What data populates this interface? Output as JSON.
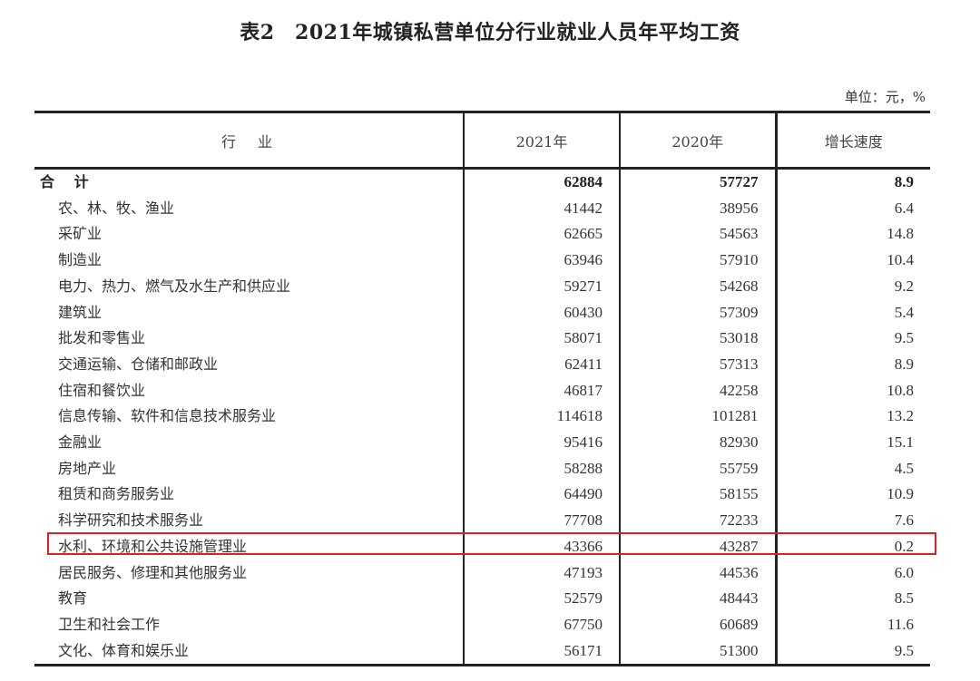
{
  "title": "表2　2021年城镇私营单位分行业就业人员年平均工资",
  "unit": "单位：元，%",
  "headers": [
    "行　业",
    "2021年",
    "2020年",
    "增长速度"
  ],
  "highlight_color": "#e02020",
  "highlighted_row": "水利、环境和公共设施管理业",
  "rows": [
    {
      "name": "合 计",
      "y2021": "62884",
      "y2020": "57727",
      "growth": "8.9",
      "total": true
    },
    {
      "name": "农、林、牧、渔业",
      "y2021": "41442",
      "y2020": "38956",
      "growth": "6.4"
    },
    {
      "name": "采矿业",
      "y2021": "62665",
      "y2020": "54563",
      "growth": "14.8"
    },
    {
      "name": "制造业",
      "y2021": "63946",
      "y2020": "57910",
      "growth": "10.4"
    },
    {
      "name": "电力、热力、燃气及水生产和供应业",
      "y2021": "59271",
      "y2020": "54268",
      "growth": "9.2"
    },
    {
      "name": "建筑业",
      "y2021": "60430",
      "y2020": "57309",
      "growth": "5.4"
    },
    {
      "name": "批发和零售业",
      "y2021": "58071",
      "y2020": "53018",
      "growth": "9.5"
    },
    {
      "name": "交通运输、仓储和邮政业",
      "y2021": "62411",
      "y2020": "57313",
      "growth": "8.9"
    },
    {
      "name": "住宿和餐饮业",
      "y2021": "46817",
      "y2020": "42258",
      "growth": "10.8"
    },
    {
      "name": "信息传输、软件和信息技术服务业",
      "y2021": "114618",
      "y2020": "101281",
      "growth": "13.2"
    },
    {
      "name": "金融业",
      "y2021": "95416",
      "y2020": "82930",
      "growth": "15.1"
    },
    {
      "name": "房地产业",
      "y2021": "58288",
      "y2020": "55759",
      "growth": "4.5"
    },
    {
      "name": "租赁和商务服务业",
      "y2021": "64490",
      "y2020": "58155",
      "growth": "10.9"
    },
    {
      "name": "科学研究和技术服务业",
      "y2021": "77708",
      "y2020": "72233",
      "growth": "7.6"
    },
    {
      "name": "水利、环境和公共设施管理业",
      "y2021": "43366",
      "y2020": "43287",
      "growth": "0.2"
    },
    {
      "name": "居民服务、修理和其他服务业",
      "y2021": "47193",
      "y2020": "44536",
      "growth": "6.0"
    },
    {
      "name": "教育",
      "y2021": "52579",
      "y2020": "48443",
      "growth": "8.5"
    },
    {
      "name": "卫生和社会工作",
      "y2021": "67750",
      "y2020": "60689",
      "growth": "11.6"
    },
    {
      "name": "文化、体育和娱乐业",
      "y2021": "56171",
      "y2020": "51300",
      "growth": "9.5"
    }
  ]
}
